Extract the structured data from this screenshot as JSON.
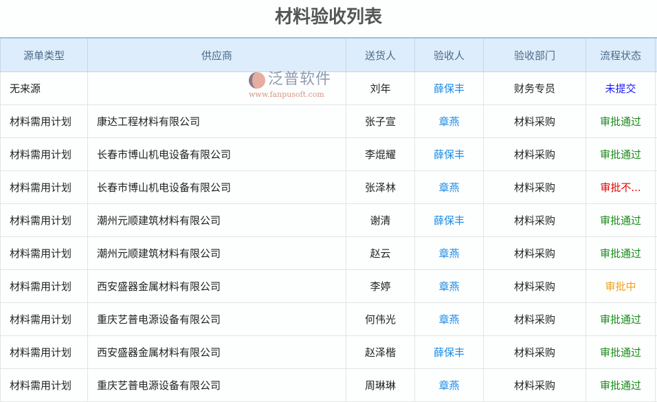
{
  "title": "材料验收列表",
  "columns": [
    "源单类型",
    "供应商",
    "送货人",
    "验收人",
    "验收部门",
    "流程状态"
  ],
  "status_colors": {
    "未提交": "#1a1aff",
    "审批通过": "#1a8a1a",
    "审批不...": "#e60000",
    "审批中": "#f0a020"
  },
  "rows": [
    {
      "source": "无来源",
      "supplier": "",
      "deliverer": "刘年",
      "inspector": "薛保丰",
      "dept": "财务专员",
      "status": "未提交"
    },
    {
      "source": "材料需用计划",
      "supplier": "康达工程材料有限公司",
      "deliverer": "张子宣",
      "inspector": "章燕",
      "dept": "材料采购",
      "status": "审批通过"
    },
    {
      "source": "材料需用计划",
      "supplier": "长春市博山机电设备有限公司",
      "deliverer": "李焜耀",
      "inspector": "薛保丰",
      "dept": "材料采购",
      "status": "审批通过"
    },
    {
      "source": "材料需用计划",
      "supplier": "长春市博山机电设备有限公司",
      "deliverer": "张泽林",
      "inspector": "章燕",
      "dept": "材料采购",
      "status": "审批不..."
    },
    {
      "source": "材料需用计划",
      "supplier": "潮州元顺建筑材料有限公司",
      "deliverer": "谢清",
      "inspector": "薛保丰",
      "dept": "材料采购",
      "status": "审批通过"
    },
    {
      "source": "材料需用计划",
      "supplier": "潮州元顺建筑材料有限公司",
      "deliverer": "赵云",
      "inspector": "章燕",
      "dept": "材料采购",
      "status": "审批通过"
    },
    {
      "source": "材料需用计划",
      "supplier": "西安盛器金属材料有限公司",
      "deliverer": "李婷",
      "inspector": "章燕",
      "dept": "材料采购",
      "status": "审批中"
    },
    {
      "source": "材料需用计划",
      "supplier": "重庆艺普电源设备有限公司",
      "deliverer": "何伟光",
      "inspector": "章燕",
      "dept": "材料采购",
      "status": "审批通过"
    },
    {
      "source": "材料需用计划",
      "supplier": "西安盛器金属材料有限公司",
      "deliverer": "赵泽楷",
      "inspector": "薛保丰",
      "dept": "材料采购",
      "status": "审批通过"
    },
    {
      "source": "材料需用计划",
      "supplier": "重庆艺普电源设备有限公司",
      "deliverer": "周琳琳",
      "inspector": "章燕",
      "dept": "材料采购",
      "status": "审批通过"
    }
  ],
  "watermark": {
    "name": "泛普软件",
    "url": "www.fanpusoft.com"
  }
}
